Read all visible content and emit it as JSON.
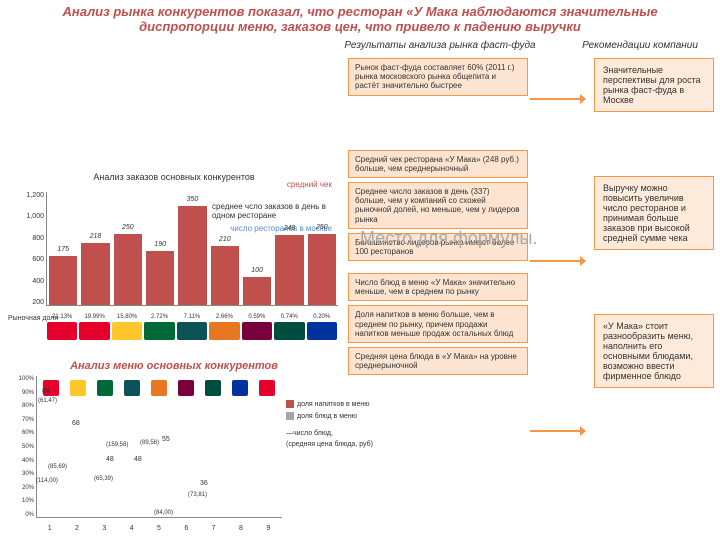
{
  "title": "Анализ рынка конкурентов показал, что ресторан «У Мака наблюдаются значительные диспропорции меню, заказов цен, что привело к падению выручки",
  "subtitle_left": "Результаты анализа рынка фаст-фуда",
  "subtitle_right": "Рекомендации компании",
  "watermark": "Место для формулы.",
  "info": {
    "market": "Рынок фаст-фуда составляет 60% (2011 г.) рынка московского рынка общепита и растёт значительно быстрее",
    "check": "Средний чек ресторана «У Мака» (248 руб.) больше, чем среднерыночный",
    "orders": "Среднее число заказов в день (337) больше, чем у компаний со схожей рыночной долей, но меньше, чем у лидеров рынка",
    "leaders": "Большинство лидеров рынка имеют более 100 ресторанов",
    "menu_count": "Число блюд в меню «У Мака» значительно меньше, чем в среднем по рынку",
    "drinks": "Доля напитков в меню больше, чем в среднем по рынку, причем продажи напитков меньше продаж остальных блюд",
    "price": "Средняя цена блюда в «У Мака» на уровне среднерыночной"
  },
  "reco": {
    "r1": "Значительные перспективы для роста рынка фаст-фуда в Москве",
    "r2": "Выручку можно повысить увеличив число ресторанов и принимая больше заказов при высокой средней сумме чека",
    "r3": "«У Мака» стоит разнообразить меню, наполнить его основными блюдами, возможно ввести фирменное блюдо"
  },
  "chart1": {
    "title": "Анализ заказов основных конкурентов",
    "legend_check": "средний чек",
    "legend_orders": "среднее чсло заказов в день в одном ресторане",
    "legend_rest": "число ресторанов в москве",
    "ylabel": "Рыночная доля",
    "y": [
      "1,200",
      "1,000",
      "800",
      "600",
      "400",
      "200"
    ],
    "bars": [
      175,
      218,
      250,
      190,
      350,
      210,
      100,
      248,
      250
    ],
    "brands_colors": [
      "#e4002b",
      "#e4002b",
      "#ffc72c",
      "#006937",
      "#0d5257",
      "#e87722",
      "#7a003c",
      "#004c3f",
      "#0033a0"
    ],
    "pct": [
      "21.13%",
      "19.99%",
      "15.80%",
      "2.72%",
      "7.11%",
      "2.66%",
      "0.59%",
      "0.74%",
      "0.20%"
    ]
  },
  "chart2": {
    "title": "Анализ меню основных конкурентов",
    "legend_drink": "доля напитков в меню",
    "legend_food": "доля блюд в меню",
    "legend_count": "число блюд,",
    "legend_avgprice": "(средняя цена блюда, руб)",
    "y": [
      "0%",
      "10%",
      "20%",
      "30%",
      "40%",
      "50%",
      "60%",
      "70%",
      "80%",
      "90%",
      "100%"
    ],
    "drink_pct": [
      84,
      68,
      48,
      48,
      45,
      44,
      55,
      36,
      40
    ],
    "labels": [
      "84",
      "(85,69)",
      "(114,00)",
      "(159,58)",
      "(65,39)",
      "68",
      "(89,58)",
      "48",
      "48",
      "55",
      "36",
      "(73,81)",
      "(84,00)"
    ],
    "x": [
      "1",
      "2",
      "3",
      "4",
      "5",
      "6",
      "7",
      "8",
      "9"
    ],
    "brand_icon_colors": [
      "#e4002b",
      "#ffc72c",
      "#006937",
      "#0d5257",
      "#e87722",
      "#7a003c",
      "#004c3f",
      "#0033a0",
      "#e4002b"
    ]
  }
}
